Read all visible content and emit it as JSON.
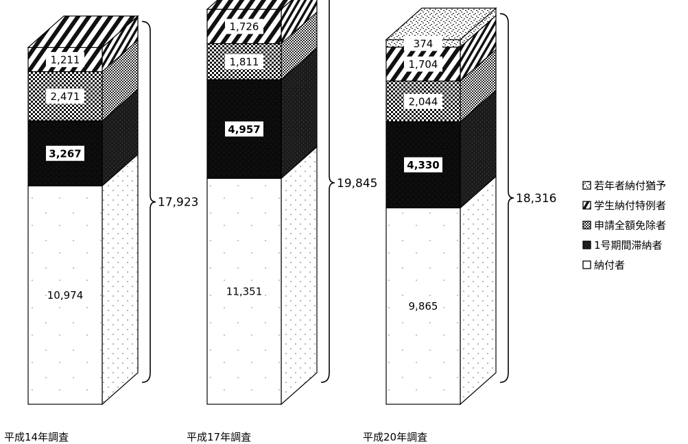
{
  "chart_data": {
    "type": "bar",
    "stacked": true,
    "style": "3d-column",
    "title": "",
    "xlabel": "",
    "ylabel": "",
    "categories": [
      "平成14年調査",
      "平成17年調査",
      "平成20年調査"
    ],
    "series": [
      {
        "name": "納付者",
        "pattern": "dots",
        "values": [
          10974,
          11351,
          9865
        ]
      },
      {
        "name": "1号期間滞納者",
        "pattern": "solid-dark",
        "values": [
          3267,
          4957,
          4330
        ]
      },
      {
        "name": "申請全額免除者",
        "pattern": "checker",
        "values": [
          2471,
          1811,
          2044
        ]
      },
      {
        "name": "学生納付特例者",
        "pattern": "diagonal",
        "values": [
          1211,
          1726,
          1704
        ]
      },
      {
        "name": "若年者納付猶予",
        "pattern": "speckle",
        "values": [
          null,
          null,
          374
        ]
      }
    ],
    "value_labels": [
      [
        "10,974",
        "3,267",
        "2,471",
        "1,211",
        ""
      ],
      [
        "11,351",
        "4,957",
        "1,811",
        "1,726",
        ""
      ],
      [
        "9,865",
        "4,330",
        "2,044",
        "1,704",
        "374"
      ]
    ],
    "totals": [
      17923,
      19845,
      18316
    ],
    "total_labels": [
      "17,923",
      "19,845",
      "18,316"
    ],
    "legend": {
      "position": "right",
      "order": [
        "若年者納付猶予",
        "学生納付特例者",
        "申請全額免除者",
        "1号期間滞納者",
        "納付者"
      ]
    },
    "grid": false,
    "axes_visible": false
  }
}
